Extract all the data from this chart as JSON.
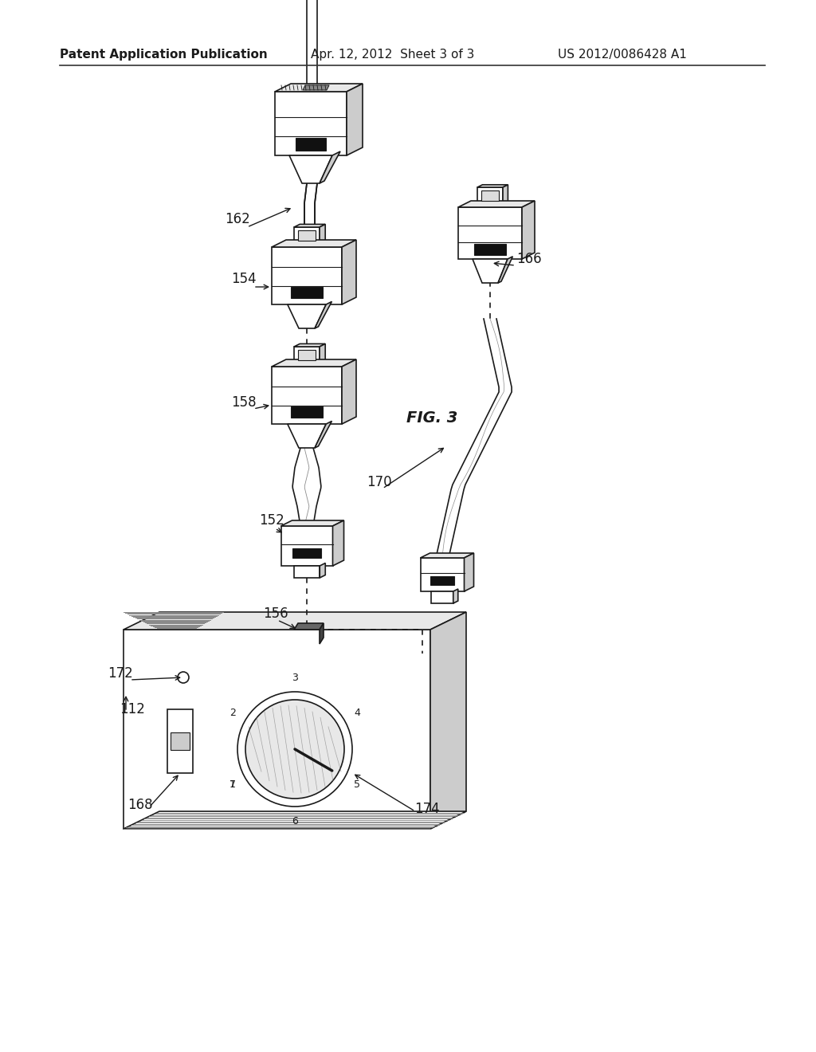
{
  "bg_color": "#ffffff",
  "header_left": "Patent Application Publication",
  "header_mid": "Apr. 12, 2012  Sheet 3 of 3",
  "header_right": "US 2012/0086428 A1",
  "fig_label": "FIG. 3",
  "color_dark": "#1a1a1a",
  "color_gray1": "#cccccc",
  "color_gray2": "#e8e8e8",
  "color_gray3": "#aaaaaa",
  "lw_main": 1.2,
  "lw_thin": 0.8
}
